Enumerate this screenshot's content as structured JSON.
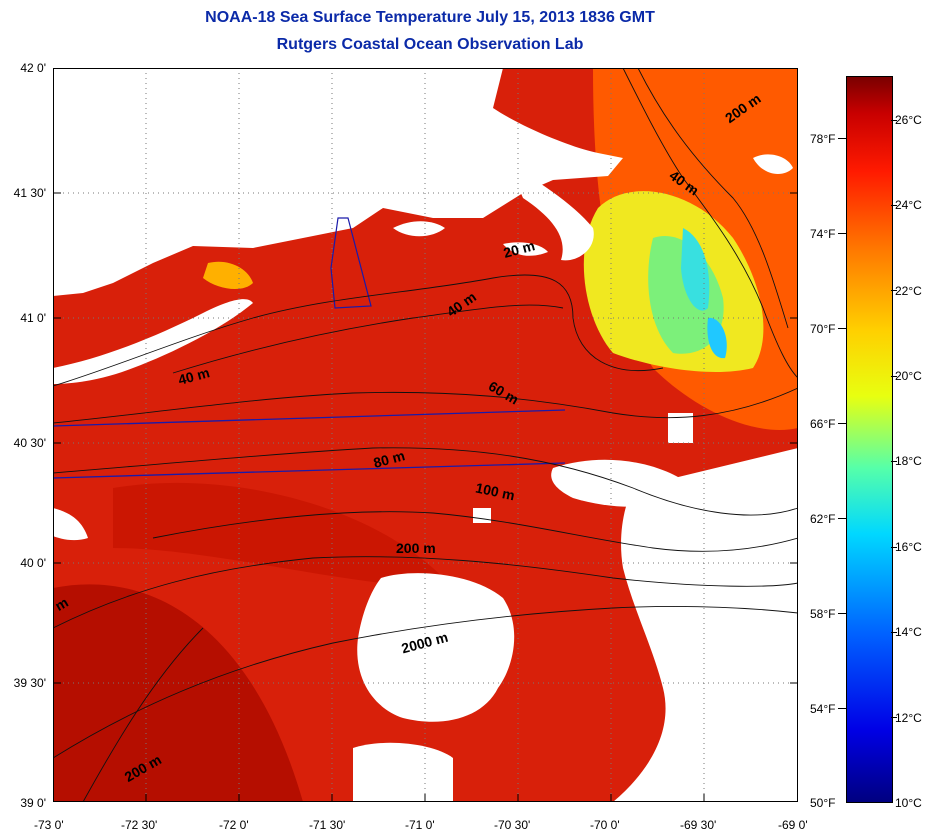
{
  "title": {
    "line1": "NOAA-18 Sea Surface Temperature July 15, 2013 1836 GMT",
    "line2": "Rutgers Coastal Ocean Observation Lab"
  },
  "axes": {
    "lat_labels": [
      "42 0'",
      "41 30'",
      "41 0'",
      "40 30'",
      "40 0'",
      "39 30'",
      "39 0'"
    ],
    "lon_labels": [
      "-73 0'",
      "-72 30'",
      "-72 0'",
      "-71 30'",
      "-71 0'",
      "-70 30'",
      "-70 0'",
      "-69 30'",
      "-69 0'"
    ]
  },
  "colorbar": {
    "f_labels": [
      "78°F",
      "74°F",
      "70°F",
      "66°F",
      "62°F",
      "58°F",
      "54°F",
      "50°F"
    ],
    "c_labels": [
      "26°C",
      "24°C",
      "22°C",
      "20°C",
      "18°C",
      "16°C",
      "14°C",
      "12°C",
      "10°C"
    ]
  },
  "contours": {
    "depth_labels": [
      "200 m",
      "40 m",
      "20 m",
      "40 m",
      "40 m",
      "60 m",
      "80 m",
      "100 m",
      "200 m",
      "2000 m",
      "200 m",
      "m"
    ]
  },
  "colors": {
    "title": "#0b2aa8",
    "sst_warm": "#d61a00",
    "sst_hot": "#b80a00",
    "sst_cool": "#f0ff30",
    "land": "#ffffff",
    "contour": "#111111",
    "transect": "#1a1aaa"
  }
}
